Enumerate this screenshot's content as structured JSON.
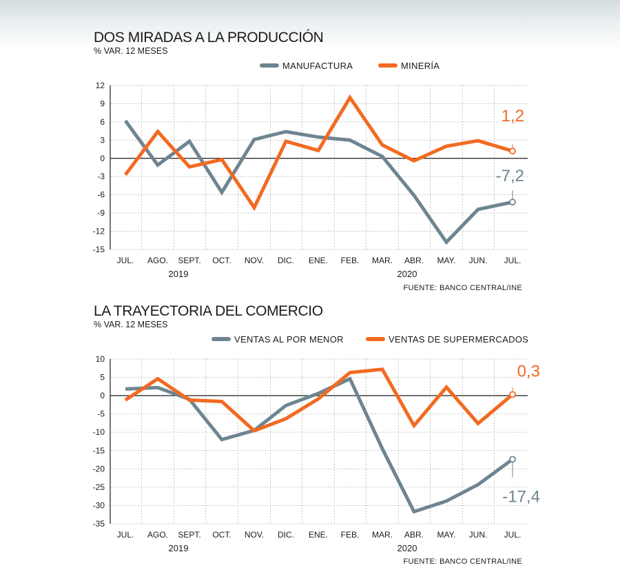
{
  "colors": {
    "gray": "#6e8591",
    "orange": "#f26a21",
    "grid": "#c7c7c7",
    "axis": "#1a1a1a"
  },
  "chart_data": [
    {
      "type": "line",
      "title": "DOS MIRADAS A LA PRODUCCIÓN",
      "subtitle": "% VAR. 12 MESES",
      "categories": [
        "JUL.",
        "AGO.",
        "SEPT.",
        "OCT.",
        "NOV.",
        "DIC.",
        "ENE.",
        "FEB.",
        "MAR.",
        "ABR.",
        "MAY.",
        "JUN.",
        "JUL."
      ],
      "years": [
        "2019",
        "2020"
      ],
      "ylim": [
        -15,
        12
      ],
      "yticks": [
        12,
        9,
        6,
        3,
        0,
        -3,
        -6,
        -9,
        -12,
        -15
      ],
      "grid": true,
      "legend_position": "top-right",
      "series": [
        {
          "name": "MANUFACTURA",
          "color": "#6e8591",
          "values": [
            6.2,
            -1.1,
            2.8,
            -5.6,
            3.1,
            4.4,
            3.5,
            3.0,
            0.3,
            -6.1,
            -13.8,
            -8.4,
            -7.2
          ]
        },
        {
          "name": "MINERÍA",
          "color": "#f26a21",
          "values": [
            -2.7,
            4.4,
            -1.4,
            -0.2,
            -8.1,
            2.8,
            1.3,
            10.0,
            2.2,
            -0.4,
            2.0,
            2.9,
            1.2
          ]
        }
      ],
      "annotations": [
        {
          "series": "MINERÍA",
          "label": "1,2"
        },
        {
          "series": "MANUFACTURA",
          "label": "-7,2"
        }
      ],
      "source": "FUENTE: BANCO CENTRAL/INE"
    },
    {
      "type": "line",
      "title": "LA TRAYECTORIA DEL COMERCIO",
      "subtitle": "% VAR. 12 MESES",
      "categories": [
        "JUL.",
        "AGO.",
        "SEPT.",
        "OCT.",
        "NOV.",
        "DIC.",
        "ENE.",
        "FEB.",
        "MAR.",
        "ABR.",
        "MAY.",
        "JUN.",
        "JUL."
      ],
      "years": [
        "2019",
        "2020"
      ],
      "ylim": [
        -35,
        10
      ],
      "yticks": [
        10,
        5,
        0,
        -5,
        -10,
        -15,
        -20,
        -25,
        -30,
        -35
      ],
      "grid": true,
      "legend_position": "top-right",
      "series": [
        {
          "name": "VENTAS AL POR MENOR",
          "color": "#6e8591",
          "values": [
            1.8,
            2.2,
            -1.0,
            -12.0,
            -9.5,
            -2.7,
            0.6,
            4.6,
            -14.5,
            -31.7,
            -28.8,
            -24.3,
            -17.4
          ]
        },
        {
          "name": "VENTAS DE SUPERMERCADOS",
          "color": "#f26a21",
          "values": [
            -1.2,
            4.6,
            -1.2,
            -1.6,
            -9.6,
            -6.3,
            -0.9,
            6.3,
            7.2,
            -8.2,
            2.3,
            -7.6,
            0.3
          ]
        }
      ],
      "annotations": [
        {
          "series": "VENTAS DE SUPERMERCADOS",
          "label": "0,3"
        },
        {
          "series": "VENTAS AL POR MENOR",
          "label": "-17,4"
        }
      ],
      "source": "FUENTE: BANCO CENTRAL/INE"
    }
  ]
}
